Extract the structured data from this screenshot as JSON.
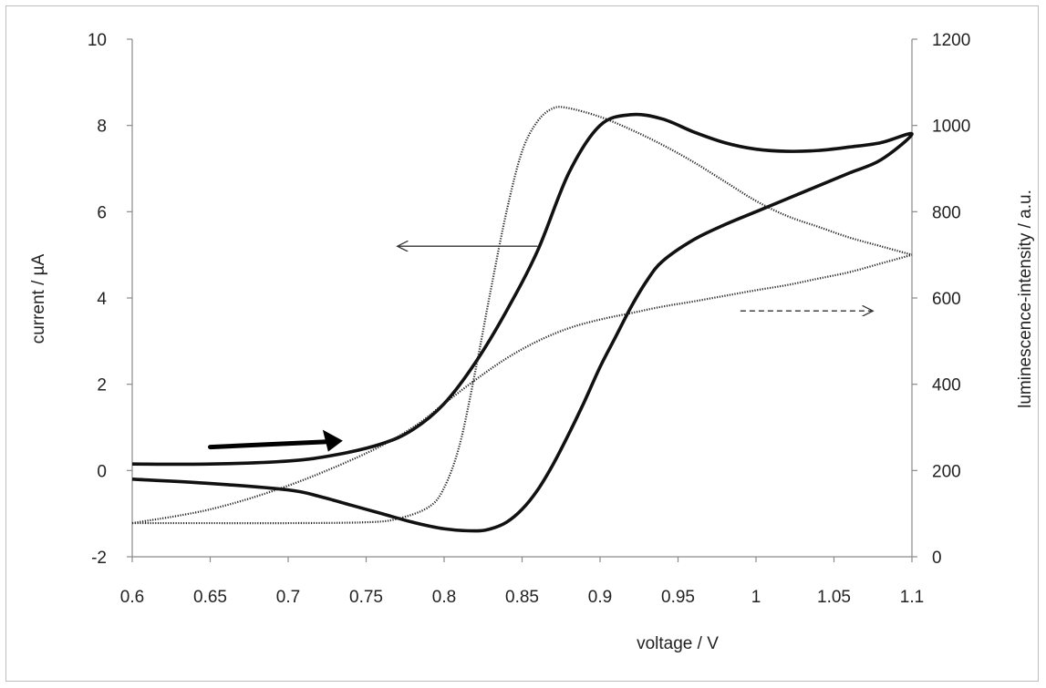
{
  "chart_data": {
    "type": "line",
    "xlabel": "voltage / V",
    "ylabel_left": "current / µA",
    "ylabel_right": "luminescence-intensity  / a.u.",
    "xlim": [
      0.6,
      1.1
    ],
    "ylim_left": [
      -2,
      10
    ],
    "ylim_right": [
      0,
      1200
    ],
    "x_ticks": [
      "0.6",
      "0.65",
      "0.7",
      "0.75",
      "0.8",
      "0.85",
      "0.9",
      "0.95",
      "1",
      "1.05",
      "1.1"
    ],
    "y_left_ticks": [
      "-2",
      "0",
      "2",
      "4",
      "6",
      "8",
      "10"
    ],
    "y_right_ticks": [
      "0",
      "200",
      "400",
      "600",
      "800",
      "1000",
      "1200"
    ],
    "grid": false,
    "legend": "none",
    "series": [
      {
        "axis": "left",
        "style": "solid-thick",
        "x": [
          0.6,
          0.65,
          0.7,
          0.73,
          0.76,
          0.78,
          0.8,
          0.82,
          0.84,
          0.86,
          0.88,
          0.9,
          0.92,
          0.94,
          0.96,
          0.98,
          1.0,
          1.02,
          1.04,
          1.06,
          1.08,
          1.1,
          1.08,
          1.06,
          1.04,
          1.02,
          1.0,
          0.98,
          0.96,
          0.94,
          0.93,
          0.92,
          0.91,
          0.9,
          0.89,
          0.88,
          0.87,
          0.86,
          0.85,
          0.84,
          0.83,
          0.82,
          0.8,
          0.78,
          0.76,
          0.74,
          0.72,
          0.7,
          0.65,
          0.6
        ],
        "y": [
          0.15,
          0.15,
          0.22,
          0.36,
          0.62,
          0.95,
          1.55,
          2.5,
          3.7,
          5.1,
          6.9,
          8.0,
          8.25,
          8.15,
          7.85,
          7.6,
          7.45,
          7.4,
          7.42,
          7.5,
          7.6,
          7.8,
          7.2,
          6.9,
          6.6,
          6.3,
          6.0,
          5.7,
          5.35,
          4.85,
          4.4,
          3.8,
          3.1,
          2.4,
          1.6,
          0.85,
          0.15,
          -0.45,
          -0.9,
          -1.2,
          -1.35,
          -1.4,
          -1.35,
          -1.2,
          -1.0,
          -0.8,
          -0.6,
          -0.45,
          -0.3,
          -0.2
        ]
      },
      {
        "axis": "right",
        "style": "dotted",
        "x": [
          0.6,
          0.65,
          0.7,
          0.75,
          0.77,
          0.79,
          0.8,
          0.81,
          0.82,
          0.83,
          0.84,
          0.85,
          0.86,
          0.87,
          0.88,
          0.9,
          0.92,
          0.94,
          0.96,
          0.98,
          1.0,
          1.02,
          1.04,
          1.06,
          1.08,
          1.1
        ],
        "y": [
          78,
          78,
          78,
          80,
          88,
          115,
          160,
          260,
          430,
          620,
          800,
          940,
          1010,
          1040,
          1040,
          1020,
          990,
          955,
          915,
          870,
          825,
          790,
          765,
          740,
          720,
          700
        ]
      },
      {
        "axis": "right",
        "style": "dotted",
        "x": [
          0.6,
          0.65,
          0.7,
          0.75,
          0.78,
          0.8,
          0.82,
          0.84,
          0.86,
          0.88,
          0.9,
          0.92,
          0.94,
          0.96,
          0.98,
          1.0,
          1.02,
          1.04,
          1.06,
          1.08,
          1.1
        ],
        "y": [
          78,
          110,
          165,
          240,
          300,
          355,
          410,
          460,
          500,
          530,
          550,
          565,
          580,
          592,
          605,
          618,
          630,
          645,
          660,
          680,
          700
        ]
      }
    ],
    "annotations": [
      {
        "type": "arrow",
        "style": "thick",
        "direction": "right",
        "x_start": 0.65,
        "x_end": 0.735,
        "y_left": 0.65
      },
      {
        "type": "arrow",
        "style": "thin",
        "direction": "left",
        "x_start": 0.86,
        "x_end": 0.77,
        "y_left": 5.2
      },
      {
        "type": "arrow",
        "style": "dashed",
        "direction": "right",
        "x_start": 0.99,
        "x_end": 1.075,
        "y_left": 3.7
      }
    ]
  }
}
